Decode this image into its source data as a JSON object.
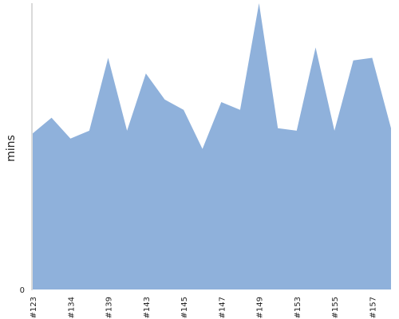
{
  "chart_data": {
    "type": "area",
    "ylabel": "mins",
    "y_tick_labels": [
      "0"
    ],
    "x_tick_labels": [
      "#123",
      "#134",
      "#139",
      "#143",
      "#145",
      "#147",
      "#149",
      "#153",
      "#155",
      "#157"
    ],
    "x_tick_positions": [
      0,
      2,
      4,
      6,
      8,
      10,
      12,
      14,
      16,
      18
    ],
    "categories": [
      "#123",
      "",
      "#134",
      "",
      "#139",
      "",
      "#143",
      "",
      "#145",
      "",
      "#147",
      "",
      "#149",
      "",
      "#153",
      "",
      "#155",
      "",
      "#157",
      ""
    ],
    "values": [
      60,
      66,
      58,
      61,
      89,
      61,
      83,
      73,
      69,
      54,
      72,
      69,
      110,
      62,
      61,
      93,
      61,
      88,
      89,
      62
    ],
    "ylim": [
      0,
      110
    ],
    "grid": false,
    "color": "#8fb1db"
  }
}
